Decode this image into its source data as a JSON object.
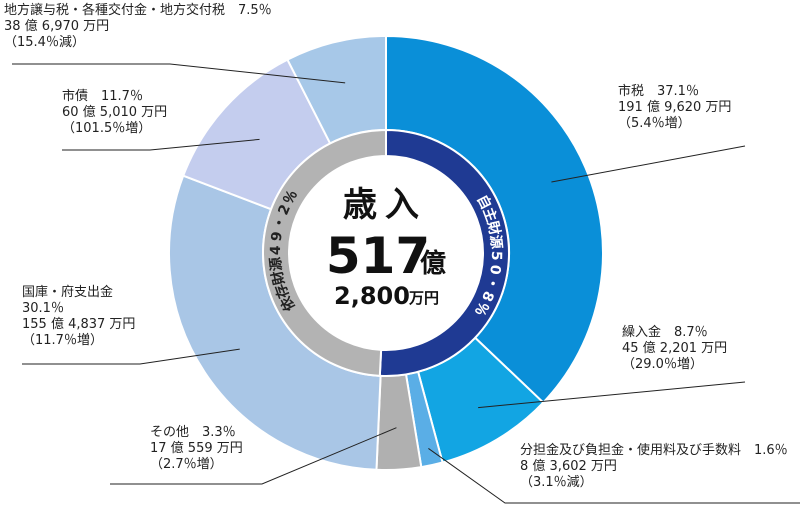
{
  "chart_data": {
    "type": "pie",
    "style": "donut",
    "center": {
      "heading": "歳入",
      "total_number": "517",
      "total_unit_oku": "億",
      "total_rest": "2,800",
      "total_rest_unit": "万円"
    },
    "inner_ring": [
      {
        "label": "自主財源",
        "value_text": "50・8％",
        "percent": 50.8,
        "color": "#1f3a93"
      },
      {
        "label": "依存財源",
        "value_text": "49・2％",
        "percent": 49.2,
        "color": "#b3b3b3"
      }
    ],
    "slices": [
      {
        "name": "市税",
        "percent": 37.1,
        "percent_text": "37.1％",
        "amount": "191 億 9,620 万円",
        "change": "（5.4％増）",
        "color": "#0a8fd8"
      },
      {
        "name": "繰入金",
        "percent": 8.7,
        "percent_text": "8.7％",
        "amount": "45 億 2,201 万円",
        "change": "（29.0％増）",
        "color": "#12a5e3"
      },
      {
        "name": "分担金及び負担金・使用料及び手数料",
        "percent": 1.6,
        "percent_text": "1.6％",
        "amount": "8 億 3,602 万円",
        "change": "（3.1％減）",
        "color": "#5aaee6"
      },
      {
        "name": "その他",
        "percent": 3.3,
        "percent_text": "3.3％",
        "amount": "17 億 559 万円",
        "change": "（2.7％増）",
        "color": "#b0b0b0"
      },
      {
        "name": "国庫・府支出金",
        "percent": 30.1,
        "percent_text": "30.1％",
        "amount": "155 億 4,837 万円",
        "change": "（11.7％増）",
        "color": "#a9c6e6"
      },
      {
        "name": "市債",
        "percent": 11.7,
        "percent_text": "11.7％",
        "amount": "60 億 5,010 万円",
        "change": "（101.5％増）",
        "color": "#c4cdee"
      },
      {
        "name": "地方譲与税・各種交付金・地方交付税",
        "percent": 7.5,
        "percent_text": "7.5％",
        "amount": "38 億 6,970 万円",
        "change": "（15.4％減）",
        "color": "#a7c8e8"
      }
    ]
  }
}
